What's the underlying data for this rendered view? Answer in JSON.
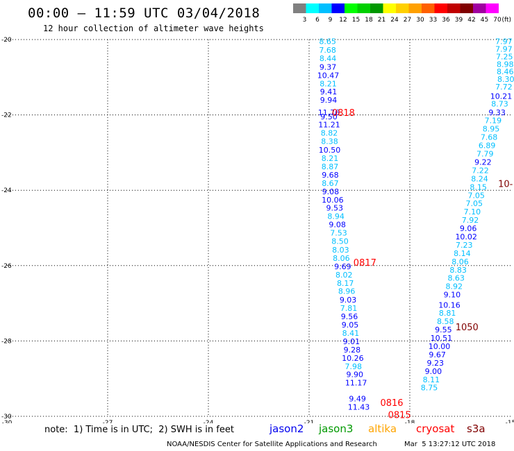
{
  "header": {
    "title": "00:00 – 11:59 UTC 03/04/2018",
    "subtitle": "12 hour collection of altimeter wave heights"
  },
  "color_scale": {
    "unit": "(ft)",
    "ticks": [
      "3",
      "6",
      "9",
      "12",
      "15",
      "18",
      "21",
      "24",
      "27",
      "30",
      "33",
      "36",
      "39",
      "42",
      "45",
      "70"
    ],
    "colors": [
      "#808080",
      "#00ffff",
      "#00bfff",
      "#0000ff",
      "#00ff00",
      "#00d000",
      "#009800",
      "#ffff00",
      "#ffd000",
      "#ffa000",
      "#ff6000",
      "#ff0000",
      "#c00000",
      "#800000",
      "#a000a0",
      "#ff00ff"
    ]
  },
  "legend": {
    "items": [
      {
        "label": "jason2",
        "color": "#0000ee"
      },
      {
        "label": "jason3",
        "color": "#009900"
      },
      {
        "label": "altika",
        "color": "#ffa500"
      },
      {
        "label": "cryosat",
        "color": "#ff0000"
      },
      {
        "label": "s3a",
        "color": "#800000"
      }
    ]
  },
  "footer": {
    "note": "note:  1) Time is in UTC;  2) SWH is in feet",
    "credit": "NOAA/NESDIS Center for Satellite Applications and Research",
    "timestamp": "Mar  5 13:27:12 UTC 2018"
  },
  "chart_data": {
    "type": "scatter",
    "title": "00:00 – 11:59 UTC 03/04/2018",
    "subtitle": "12 hour collection of altimeter wave heights",
    "x_axis": {
      "range": [
        -30,
        -15
      ],
      "ticks": [
        "-30",
        "-27",
        "-24",
        "-21",
        "-18",
        "-15"
      ],
      "values": [
        -30,
        -27,
        -24,
        -21,
        -18,
        -15
      ]
    },
    "y_axis": {
      "range": [
        -30,
        -20
      ],
      "ticks": [
        "-30",
        "-28",
        "-26",
        "-24",
        "-22",
        "-20"
      ],
      "values": [
        -30,
        -28,
        -26,
        -24,
        -22,
        -20
      ]
    },
    "grid": "dotted",
    "pass_labels": [
      {
        "text": "0818",
        "lon": -20.32,
        "lat": -21.93,
        "color": "#ff0000"
      },
      {
        "text": "0817",
        "lon": -19.68,
        "lat": -25.91,
        "color": "#ff0000"
      },
      {
        "text": "0816",
        "lon": -18.88,
        "lat": -29.63,
        "color": "#ff0000"
      },
      {
        "text": "0815",
        "lon": -18.65,
        "lat": -29.95,
        "color": "#ff0000"
      },
      {
        "text": "1050",
        "lon": -16.64,
        "lat": -27.62,
        "color": "#800000"
      },
      {
        "text": "10-",
        "lon": -15.37,
        "lat": -23.82,
        "color": "#800000"
      }
    ],
    "series": [
      {
        "name": "jason2",
        "points": [
          {
            "lon": -20.45,
            "lat": -20.05,
            "swh": "8.65"
          },
          {
            "lon": -20.45,
            "lat": -20.28,
            "swh": "7.68"
          },
          {
            "lon": -20.44,
            "lat": -20.5,
            "swh": "8.44"
          },
          {
            "lon": -20.44,
            "lat": -20.73,
            "swh": "9.37"
          },
          {
            "lon": -20.43,
            "lat": -20.95,
            "swh": "10.47"
          },
          {
            "lon": -20.43,
            "lat": -21.17,
            "swh": "8.21"
          },
          {
            "lon": -20.42,
            "lat": -21.38,
            "swh": "9.41"
          },
          {
            "lon": -20.42,
            "lat": -21.6,
            "swh": "9.94"
          },
          {
            "lon": -20.41,
            "lat": -21.93,
            "swh": "11.76"
          },
          {
            "lon": -20.41,
            "lat": -22.04,
            "swh": "9.50"
          },
          {
            "lon": -20.4,
            "lat": -22.26,
            "swh": "11.21"
          },
          {
            "lon": -20.4,
            "lat": -22.48,
            "swh": "8.82"
          },
          {
            "lon": -20.39,
            "lat": -22.7,
            "swh": "8.38"
          },
          {
            "lon": -20.39,
            "lat": -22.93,
            "swh": "10.50"
          },
          {
            "lon": -20.38,
            "lat": -23.15,
            "swh": "8.21"
          },
          {
            "lon": -20.38,
            "lat": -23.37,
            "swh": "8.87"
          },
          {
            "lon": -20.37,
            "lat": -23.59,
            "swh": "9.68"
          },
          {
            "lon": -20.37,
            "lat": -23.81,
            "swh": "8.67"
          },
          {
            "lon": -20.36,
            "lat": -24.03,
            "swh": "9.08"
          },
          {
            "lon": -20.3,
            "lat": -24.25,
            "swh": "10.06"
          },
          {
            "lon": -20.24,
            "lat": -24.47,
            "swh": "9.53"
          },
          {
            "lon": -20.2,
            "lat": -24.69,
            "swh": "8.94"
          },
          {
            "lon": -20.16,
            "lat": -24.91,
            "swh": "9.08"
          },
          {
            "lon": -20.12,
            "lat": -25.13,
            "swh": "7.53"
          },
          {
            "lon": -20.08,
            "lat": -25.35,
            "swh": "8.50"
          },
          {
            "lon": -20.06,
            "lat": -25.58,
            "swh": "8.03"
          },
          {
            "lon": -20.04,
            "lat": -25.8,
            "swh": "8.06"
          },
          {
            "lon": -20.0,
            "lat": -26.02,
            "swh": "9.69"
          },
          {
            "lon": -19.96,
            "lat": -26.24,
            "swh": "8.02"
          },
          {
            "lon": -19.92,
            "lat": -26.46,
            "swh": "8.17"
          },
          {
            "lon": -19.88,
            "lat": -26.68,
            "swh": "8.96"
          },
          {
            "lon": -19.84,
            "lat": -26.91,
            "swh": "9.03"
          },
          {
            "lon": -19.82,
            "lat": -27.13,
            "swh": "7.81"
          },
          {
            "lon": -19.8,
            "lat": -27.35,
            "swh": "9.56"
          },
          {
            "lon": -19.78,
            "lat": -27.57,
            "swh": "9.05"
          },
          {
            "lon": -19.76,
            "lat": -27.79,
            "swh": "8.41"
          },
          {
            "lon": -19.74,
            "lat": -28.01,
            "swh": "9.01"
          },
          {
            "lon": -19.72,
            "lat": -28.23,
            "swh": "9.28"
          },
          {
            "lon": -19.7,
            "lat": -28.45,
            "swh": "10.26"
          },
          {
            "lon": -19.68,
            "lat": -28.67,
            "swh": "7.98"
          },
          {
            "lon": -19.64,
            "lat": -28.89,
            "swh": "9.90"
          },
          {
            "lon": -19.6,
            "lat": -29.11,
            "swh": "11.17"
          },
          {
            "lon": -19.56,
            "lat": -29.53,
            "swh": "9.49"
          },
          {
            "lon": -19.52,
            "lat": -29.75,
            "swh": "11.43"
          }
        ]
      },
      {
        "name": "jason3",
        "points": [
          {
            "lon": -15.2,
            "lat": -20.05,
            "swh": "7.97"
          },
          {
            "lon": -15.2,
            "lat": -20.25,
            "swh": "7.97"
          },
          {
            "lon": -15.18,
            "lat": -20.45,
            "swh": "7.25"
          },
          {
            "lon": -15.16,
            "lat": -20.65,
            "swh": "8.98"
          },
          {
            "lon": -15.16,
            "lat": -20.85,
            "swh": "8.46"
          },
          {
            "lon": -15.14,
            "lat": -21.05,
            "swh": "8.30"
          },
          {
            "lon": -15.2,
            "lat": -21.25,
            "swh": "7.72"
          },
          {
            "lon": -15.28,
            "lat": -21.5,
            "swh": "10.21"
          },
          {
            "lon": -15.32,
            "lat": -21.7,
            "swh": "8.73"
          },
          {
            "lon": -15.4,
            "lat": -21.93,
            "swh": "9.33"
          },
          {
            "lon": -15.52,
            "lat": -22.15,
            "swh": "7.19"
          },
          {
            "lon": -15.58,
            "lat": -22.37,
            "swh": "8.95"
          },
          {
            "lon": -15.64,
            "lat": -22.59,
            "swh": "7.68"
          },
          {
            "lon": -15.7,
            "lat": -22.81,
            "swh": "6.89"
          },
          {
            "lon": -15.76,
            "lat": -23.03,
            "swh": "7.79"
          },
          {
            "lon": -15.82,
            "lat": -23.25,
            "swh": "9.22"
          },
          {
            "lon": -15.9,
            "lat": -23.47,
            "swh": "7.22"
          },
          {
            "lon": -15.92,
            "lat": -23.69,
            "swh": "8.24"
          },
          {
            "lon": -15.96,
            "lat": -23.91,
            "swh": "8.15"
          },
          {
            "lon": -16.02,
            "lat": -24.13,
            "swh": "7.05"
          },
          {
            "lon": -16.08,
            "lat": -24.35,
            "swh": "7.05"
          },
          {
            "lon": -16.14,
            "lat": -24.57,
            "swh": "7.10"
          },
          {
            "lon": -16.2,
            "lat": -24.79,
            "swh": "7.92"
          },
          {
            "lon": -16.26,
            "lat": -25.01,
            "swh": "9.06"
          },
          {
            "lon": -16.32,
            "lat": -25.23,
            "swh": "10.02"
          },
          {
            "lon": -16.38,
            "lat": -25.45,
            "swh": "7.23"
          },
          {
            "lon": -16.44,
            "lat": -25.67,
            "swh": "8.14"
          },
          {
            "lon": -16.5,
            "lat": -25.89,
            "swh": "8.06"
          },
          {
            "lon": -16.56,
            "lat": -26.11,
            "swh": "8.83"
          },
          {
            "lon": -16.62,
            "lat": -26.33,
            "swh": "8.63"
          },
          {
            "lon": -16.68,
            "lat": -26.55,
            "swh": "8.92"
          },
          {
            "lon": -16.74,
            "lat": -26.77,
            "swh": "9.10"
          },
          {
            "lon": -16.82,
            "lat": -27.04,
            "swh": "10.16"
          },
          {
            "lon": -16.88,
            "lat": -27.26,
            "swh": "8.81"
          },
          {
            "lon": -16.94,
            "lat": -27.48,
            "swh": "8.58"
          },
          {
            "lon": -17.0,
            "lat": -27.7,
            "swh": "9.55"
          },
          {
            "lon": -17.06,
            "lat": -27.92,
            "swh": "10.51"
          },
          {
            "lon": -17.12,
            "lat": -28.14,
            "swh": "10.00"
          },
          {
            "lon": -17.18,
            "lat": -28.36,
            "swh": "9.67"
          },
          {
            "lon": -17.24,
            "lat": -28.58,
            "swh": "9.23"
          },
          {
            "lon": -17.3,
            "lat": -28.8,
            "swh": "9.00"
          },
          {
            "lon": -17.36,
            "lat": -29.02,
            "swh": "8.11"
          },
          {
            "lon": -17.42,
            "lat": -29.24,
            "swh": "8.75"
          }
        ]
      }
    ]
  }
}
